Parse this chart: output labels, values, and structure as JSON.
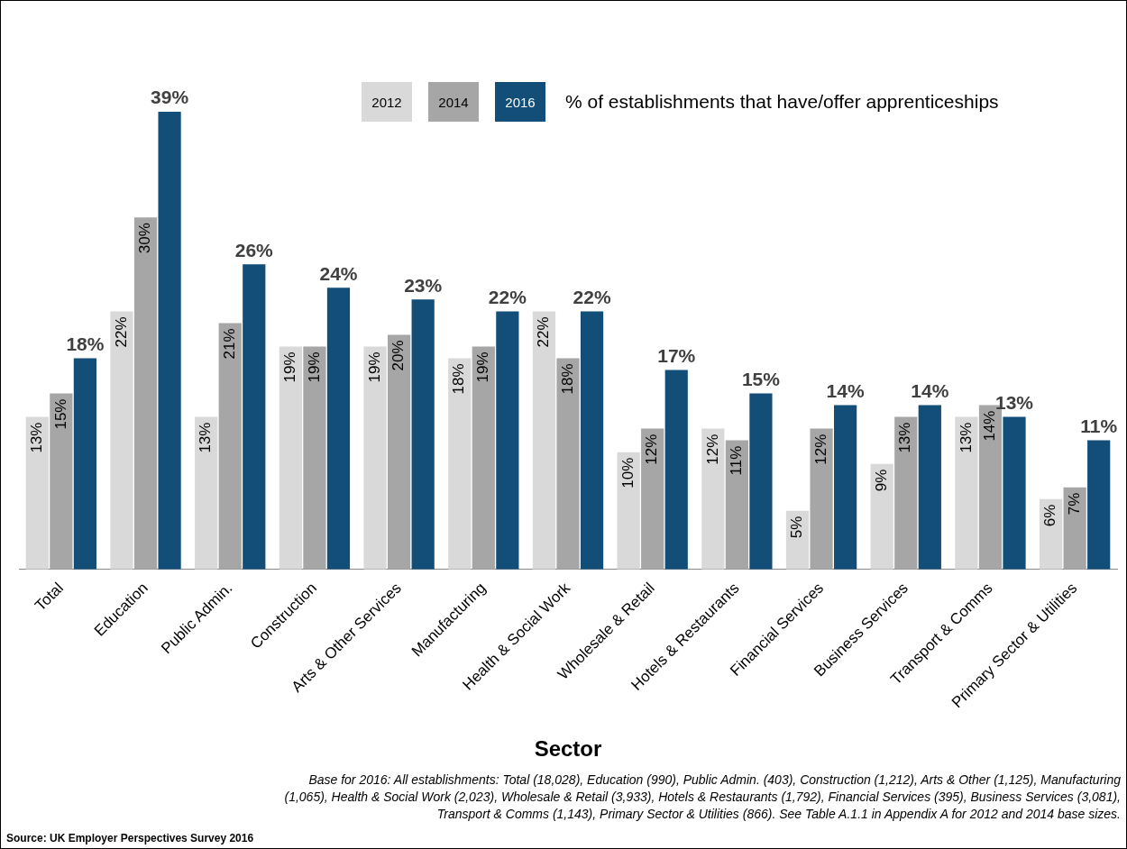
{
  "chart_data": {
    "type": "bar",
    "xlabel": "Sector",
    "legend_title": "% of establishments that have/offer apprenticeships",
    "legend": "top",
    "grid": false,
    "categories": [
      "Total",
      "Education",
      "Public Admin.",
      "Construction",
      "Arts & Other Services",
      "Manufacturing",
      "Health & Social Work",
      "Wholesale & Retail",
      "Hotels & Restaurants",
      "Financial Services",
      "Business Services",
      "Transport & Comms",
      "Primary Sector & Utilities"
    ],
    "series": [
      {
        "name": "2012",
        "color": "#d9d9d9",
        "values": [
          13,
          22,
          13,
          19,
          19,
          18,
          22,
          10,
          12,
          5,
          9,
          13,
          6
        ],
        "value_labels": [
          "13%",
          "22%",
          "13%",
          "19%",
          "19%",
          "18%",
          "22%",
          "10%",
          "12%",
          "5%",
          "9%",
          "13%",
          "6%"
        ]
      },
      {
        "name": "2014",
        "color": "#a6a6a6",
        "values": [
          15,
          30,
          21,
          19,
          20,
          19,
          18,
          12,
          11,
          12,
          13,
          14,
          7
        ],
        "value_labels": [
          "15%",
          "30%",
          "21%",
          "19%",
          "20%",
          "19%",
          "18%",
          "12%",
          "11%",
          "12%",
          "13%",
          "14%",
          "7%"
        ]
      },
      {
        "name": "2016",
        "color": "#124e78",
        "values": [
          18,
          39,
          26,
          24,
          23,
          22,
          22,
          17,
          15,
          14,
          14,
          13,
          11
        ],
        "value_labels": [
          "18%",
          "39%",
          "26%",
          "24%",
          "23%",
          "22%",
          "22%",
          "17%",
          "15%",
          "14%",
          "14%",
          "13%",
          "11%"
        ]
      }
    ],
    "annotations": [
      "Base for 2016: All establishments: Total (18,028), Education (990), Public Admin. (403), Construction (1,212), Arts & Other (1,125), Manufacturing (1,065), Health & Social Work (2,023), Wholesale & Retail (3,933), Hotels & Restaurants (1,792), Financial Services (395), Business Services (3,081), Transport & Comms (1,143), Primary Sector & Utilities (866). See Table A.1.1 in Appendix A for 2012 and 2014 base sizes.",
      "Source: UK Employer Perspectives Survey 2016"
    ]
  }
}
